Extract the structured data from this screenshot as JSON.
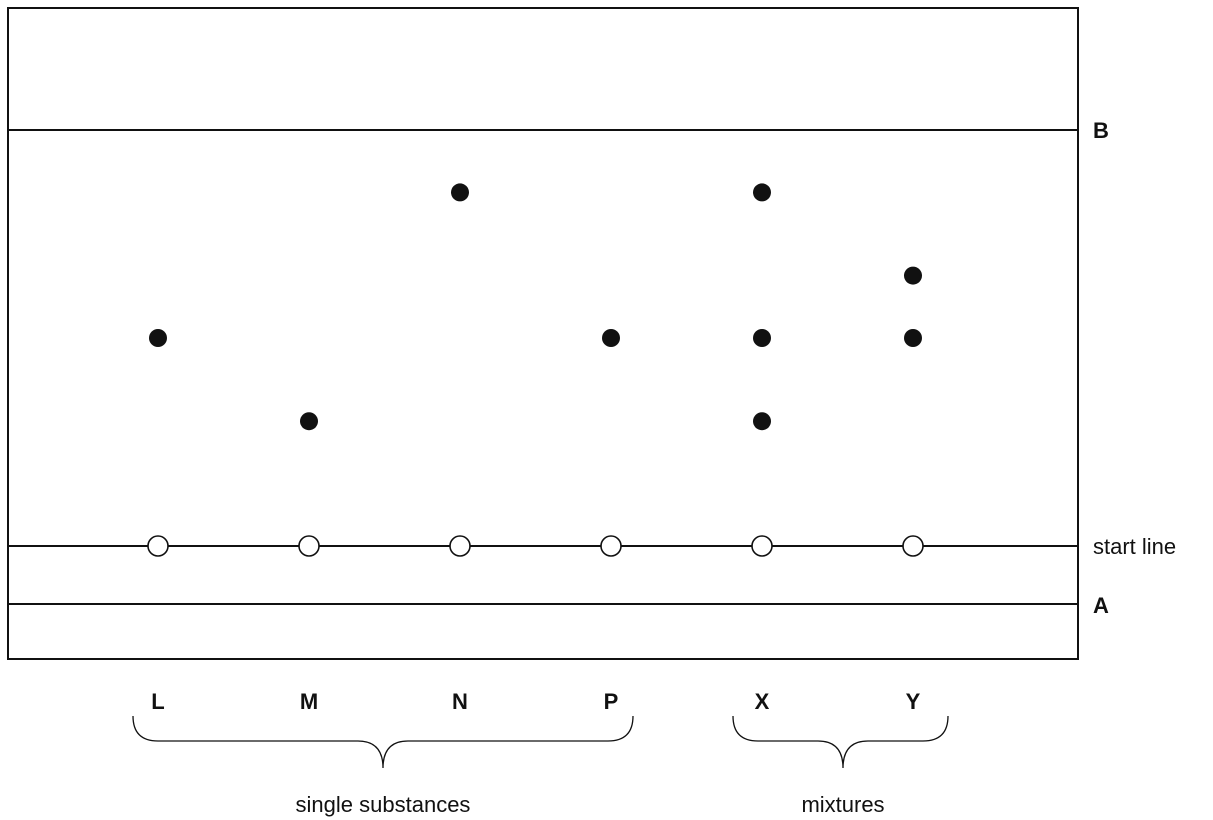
{
  "lines": {
    "B": "B",
    "start": "start line",
    "A": "A"
  },
  "lanes": [
    {
      "label": "L",
      "spot_levels": [
        0.5
      ],
      "group": "single"
    },
    {
      "label": "M",
      "spot_levels": [
        0.3
      ],
      "group": "single"
    },
    {
      "label": "N",
      "spot_levels": [
        0.85
      ],
      "group": "single"
    },
    {
      "label": "P",
      "spot_levels": [
        0.5
      ],
      "group": "single"
    },
    {
      "label": "X",
      "spot_levels": [
        0.85,
        0.5,
        0.3
      ],
      "group": "mixture"
    },
    {
      "label": "Y",
      "spot_levels": [
        0.65,
        0.5
      ],
      "group": "mixture"
    }
  ],
  "groups": {
    "single": "single substances",
    "mixture": "mixtures"
  }
}
